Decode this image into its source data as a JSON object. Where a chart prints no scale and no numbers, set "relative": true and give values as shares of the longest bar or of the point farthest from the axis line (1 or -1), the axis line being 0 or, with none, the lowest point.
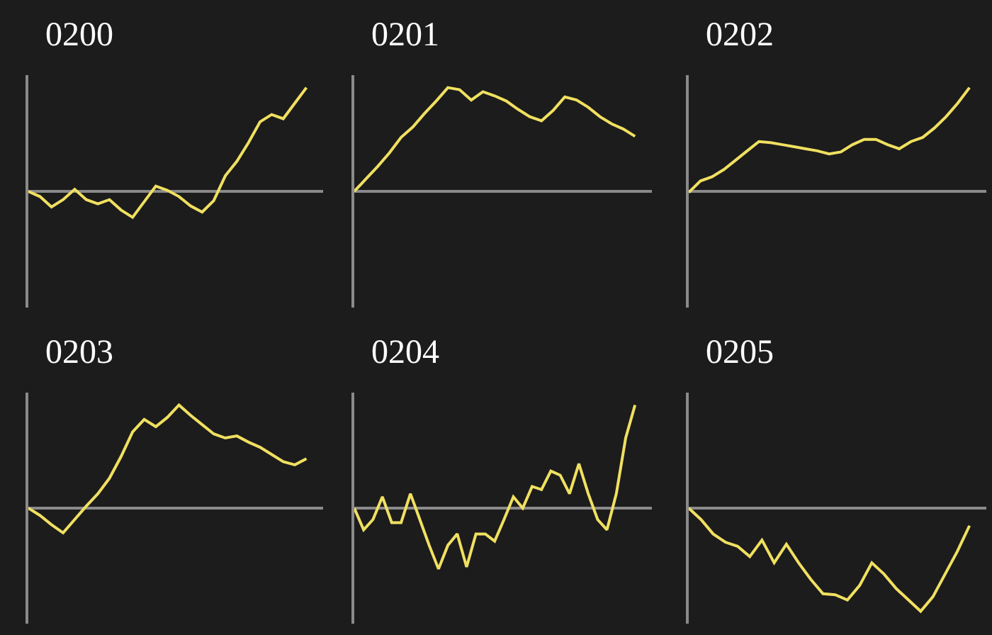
{
  "chart_data": [
    {
      "type": "line",
      "title": "0200",
      "relative": true,
      "tick_labels": false,
      "categories": [
        null,
        null,
        null,
        null,
        null,
        null,
        null,
        null,
        null,
        null,
        null,
        null,
        null,
        null,
        null,
        null,
        null,
        null,
        null,
        null,
        null,
        null,
        null,
        null,
        null
      ],
      "series": [
        {
          "color": "#f0e060",
          "values": [
            0,
            -0.05,
            -0.15,
            -0.08,
            0.02,
            -0.08,
            -0.12,
            -0.08,
            -0.18,
            -0.25,
            -0.1,
            0.05,
            0.01,
            -0.05,
            -0.14,
            -0.2,
            -0.09,
            0.15,
            0.29,
            0.47,
            0.67,
            0.74,
            0.7,
            0.85,
            1
          ]
        }
      ]
    },
    {
      "type": "line",
      "title": "0201",
      "relative": true,
      "tick_labels": false,
      "categories": [
        null,
        null,
        null,
        null,
        null,
        null,
        null,
        null,
        null,
        null,
        null,
        null,
        null,
        null,
        null,
        null,
        null,
        null,
        null,
        null,
        null,
        null,
        null,
        null,
        null
      ],
      "series": [
        {
          "color": "#f0e060",
          "values": [
            0,
            0.12,
            0.24,
            0.37,
            0.52,
            0.62,
            0.75,
            0.87,
            1,
            0.98,
            0.88,
            0.96,
            0.92,
            0.87,
            0.79,
            0.72,
            0.68,
            0.78,
            0.91,
            0.88,
            0.81,
            0.72,
            0.65,
            0.6,
            0.53
          ]
        }
      ]
    },
    {
      "type": "line",
      "title": "0202",
      "relative": true,
      "tick_labels": false,
      "categories": [
        null,
        null,
        null,
        null,
        null,
        null,
        null,
        null,
        null,
        null,
        null,
        null,
        null,
        null,
        null,
        null,
        null,
        null,
        null,
        null,
        null,
        null,
        null,
        null,
        null
      ],
      "series": [
        {
          "color": "#f0e060",
          "values": [
            -0.01,
            0.1,
            0.14,
            0.21,
            0.3,
            0.39,
            0.48,
            0.47,
            0.45,
            0.43,
            0.41,
            0.39,
            0.36,
            0.38,
            0.45,
            0.5,
            0.5,
            0.45,
            0.41,
            0.48,
            0.52,
            0.61,
            0.72,
            0.85,
            1
          ]
        }
      ]
    },
    {
      "type": "line",
      "title": "0203",
      "relative": true,
      "tick_labels": false,
      "categories": [
        null,
        null,
        null,
        null,
        null,
        null,
        null,
        null,
        null,
        null,
        null,
        null,
        null,
        null,
        null,
        null,
        null,
        null,
        null,
        null,
        null,
        null,
        null,
        null,
        null
      ],
      "series": [
        {
          "color": "#f0e060",
          "values": [
            0,
            -0.07,
            -0.16,
            -0.24,
            -0.11,
            0.02,
            0.14,
            0.29,
            0.5,
            0.74,
            0.86,
            0.79,
            0.88,
            1,
            0.9,
            0.81,
            0.72,
            0.68,
            0.7,
            0.64,
            0.59,
            0.52,
            0.45,
            0.42,
            0.48
          ]
        }
      ]
    },
    {
      "type": "line",
      "title": "0204",
      "relative": true,
      "tick_labels": false,
      "categories": [
        null,
        null,
        null,
        null,
        null,
        null,
        null,
        null,
        null,
        null,
        null,
        null,
        null,
        null,
        null,
        null,
        null,
        null,
        null,
        null,
        null,
        null,
        null,
        null,
        null,
        null,
        null,
        null,
        null,
        null,
        null
      ],
      "series": [
        {
          "color": "#f0e060",
          "values": [
            0,
            -0.21,
            -0.11,
            0.11,
            -0.14,
            -0.14,
            0.14,
            -0.11,
            -0.36,
            -0.59,
            -0.36,
            -0.25,
            -0.57,
            -0.25,
            -0.25,
            -0.32,
            -0.11,
            0.11,
            0,
            0.21,
            0.18,
            0.36,
            0.32,
            0.14,
            0.43,
            0.14,
            -0.11,
            -0.21,
            0.14,
            0.68,
            1
          ]
        }
      ]
    },
    {
      "type": "line",
      "title": "0205",
      "relative": true,
      "tick_labels": false,
      "categories": [
        null,
        null,
        null,
        null,
        null,
        null,
        null,
        null,
        null,
        null,
        null,
        null,
        null,
        null,
        null,
        null,
        null,
        null,
        null,
        null,
        null,
        null,
        null,
        null
      ],
      "series": [
        {
          "color": "#f0e060",
          "values": [
            0,
            -0.11,
            -0.25,
            -0.33,
            -0.37,
            -0.47,
            -0.31,
            -0.53,
            -0.35,
            -0.53,
            -0.69,
            -0.83,
            -0.84,
            -0.89,
            -0.75,
            -0.53,
            -0.64,
            -0.78,
            -0.89,
            -1,
            -0.86,
            -0.64,
            -0.42,
            -0.17
          ]
        }
      ]
    }
  ]
}
